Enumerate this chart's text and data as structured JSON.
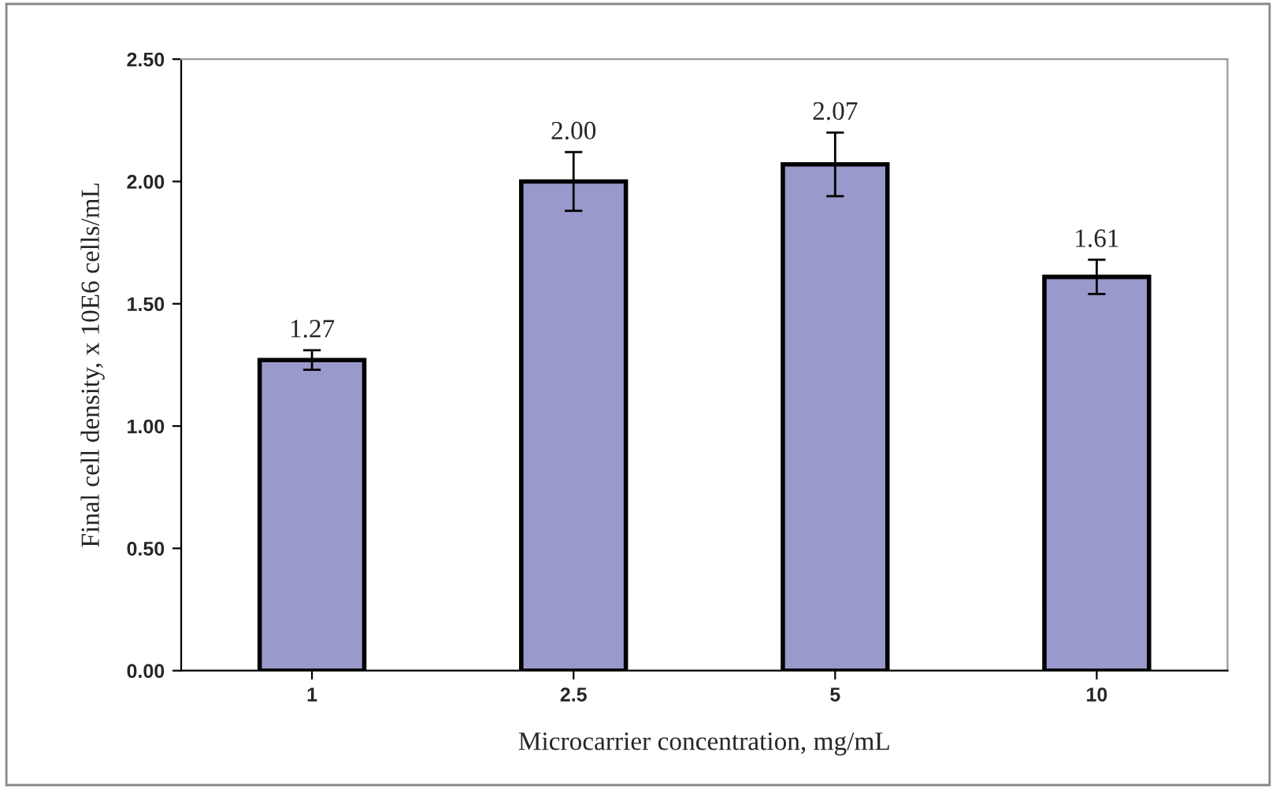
{
  "chart_data": {
    "type": "bar",
    "xlabel": "Microcarrier concentration, mg/mL",
    "ylabel": "Final cell density, x 10E6 cells/mL",
    "categories": [
      "1",
      "2.5",
      "5",
      "10"
    ],
    "values": [
      1.27,
      2.0,
      2.07,
      1.61
    ],
    "errors": [
      0.04,
      0.12,
      0.13,
      0.07
    ],
    "color": "#9999cc",
    "value_labels": [
      "1.27",
      "2.00",
      "2.07",
      "1.61"
    ],
    "ylim": [
      0,
      2.5
    ],
    "yticks": [
      {
        "value": 0,
        "label": "0.00"
      },
      {
        "value": 0.5,
        "label": "0.50"
      },
      {
        "value": 1,
        "label": "1.00"
      },
      {
        "value": 1.5,
        "label": "1.50"
      },
      {
        "value": 2,
        "label": "2.00"
      },
      {
        "value": 2.5,
        "label": "2.50"
      }
    ],
    "grid": false,
    "legend": false
  }
}
